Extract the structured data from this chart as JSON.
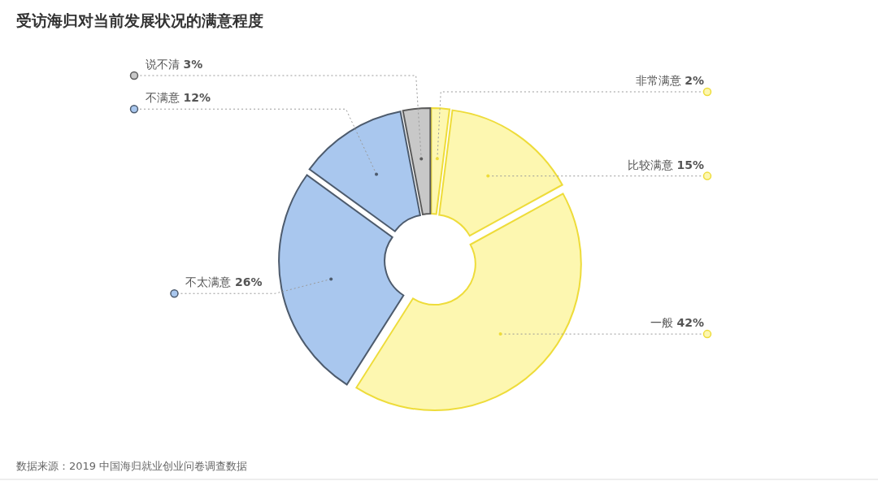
{
  "chart_data": {
    "type": "donut",
    "title": "受访海归对当前发展状况的满意程度",
    "categories": [
      "非常满意",
      "比较满意",
      "一般",
      "不太满意",
      "不满意",
      "说不清"
    ],
    "values": [
      2,
      15,
      42,
      26,
      12,
      3
    ],
    "value_labels": [
      "2%",
      "15%",
      "42%",
      "26%",
      "12%",
      "3%"
    ],
    "colors": [
      "#fdf7b0",
      "#fdf7b0",
      "#fdf7b0",
      "#a9c7ee",
      "#a9c7ee",
      "#c8c8c8"
    ],
    "annotations": [
      "数据来源：2019 中国海归就业创业问卷调查数据"
    ]
  }
}
